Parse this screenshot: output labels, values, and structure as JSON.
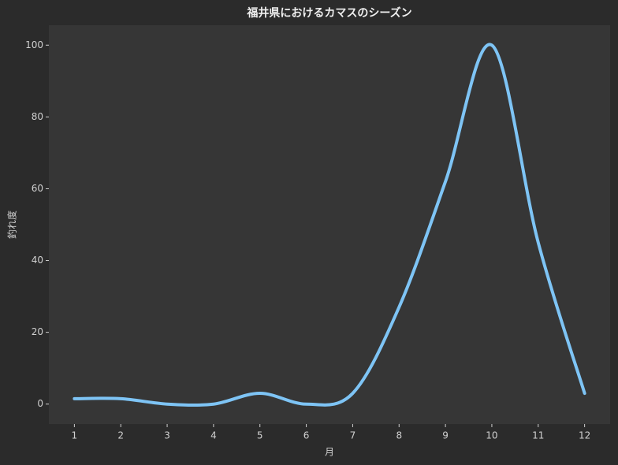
{
  "chart_data": {
    "type": "line",
    "title": "福井県におけるカマスのシーズン",
    "x_label": "月",
    "y_label": "釣れ度",
    "x": [
      1,
      2,
      3,
      4,
      5,
      6,
      7,
      8,
      9,
      10,
      11,
      12
    ],
    "series": [
      {
        "color": "#7ec4f5",
        "values": [
          1.5,
          1.5,
          0,
          0,
          3,
          0,
          3,
          27,
          62,
          100,
          45,
          3
        ]
      }
    ],
    "xlim": [
      0.45,
      12.55
    ],
    "ylim": [
      -5.55,
      105.55
    ],
    "xticks": [
      1,
      2,
      3,
      4,
      5,
      6,
      7,
      8,
      9,
      10,
      11,
      12
    ],
    "yticks": [
      0,
      20,
      40,
      60,
      80,
      100
    ],
    "grid": false
  }
}
